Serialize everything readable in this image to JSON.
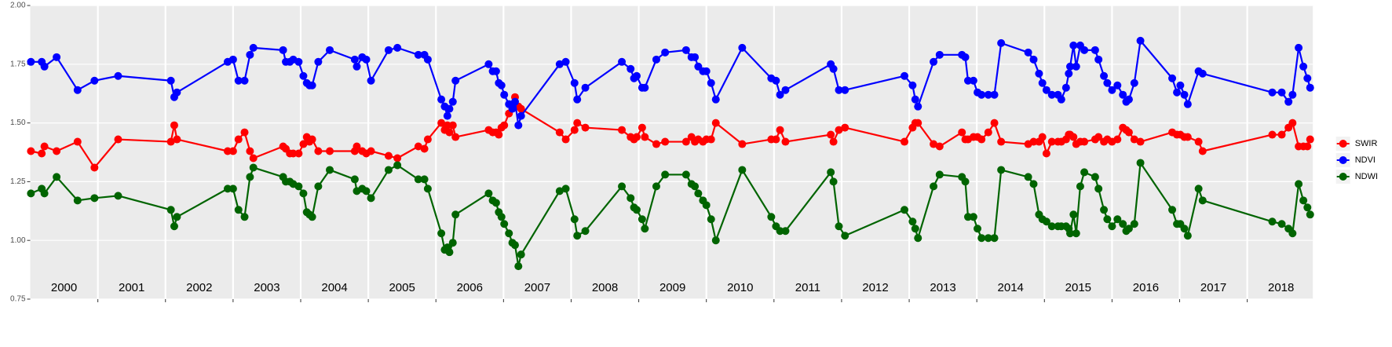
{
  "chart_data": {
    "type": "line",
    "x": [
      2000.01,
      2000.17,
      2000.21,
      2000.39,
      2000.7,
      2000.95,
      2001.3,
      2002.08,
      2002.13,
      2002.17,
      2002.92,
      2003.0,
      2003.08,
      2003.17,
      2003.25,
      2003.3,
      2003.74,
      2003.78,
      2003.84,
      2003.89,
      2003.97,
      2004.04,
      2004.09,
      2004.13,
      2004.17,
      2004.26,
      2004.43,
      2004.8,
      2004.83,
      2004.91,
      2004.97,
      2005.04,
      2005.3,
      2005.43,
      2005.74,
      2005.83,
      2005.88,
      2006.08,
      2006.13,
      2006.17,
      2006.2,
      2006.25,
      2006.29,
      2006.78,
      2006.84,
      2006.89,
      2006.93,
      2006.97,
      2007.01,
      2007.08,
      2007.13,
      2007.17,
      2007.22,
      2007.26,
      2007.83,
      2007.92,
      2008.05,
      2008.09,
      2008.21,
      2008.75,
      2008.88,
      2008.93,
      2008.97,
      2009.05,
      2009.09,
      2009.26,
      2009.39,
      2009.7,
      2009.78,
      2009.83,
      2009.88,
      2009.95,
      2010.0,
      2010.07,
      2010.14,
      2010.53,
      2010.96,
      2011.03,
      2011.09,
      2011.17,
      2011.84,
      2011.88,
      2011.96,
      2012.05,
      2012.93,
      2013.05,
      2013.09,
      2013.13,
      2013.36,
      2013.45,
      2013.78,
      2013.83,
      2013.87,
      2013.95,
      2014.01,
      2014.07,
      2014.17,
      2014.26,
      2014.36,
      2014.76,
      2014.84,
      2014.92,
      2014.97,
      2015.03,
      2015.11,
      2015.2,
      2015.25,
      2015.32,
      2015.36,
      2015.38,
      2015.43,
      2015.47,
      2015.53,
      2015.59,
      2015.75,
      2015.8,
      2015.88,
      2015.93,
      2016.0,
      2016.08,
      2016.16,
      2016.21,
      2016.25,
      2016.33,
      2016.42,
      2016.89,
      2016.96,
      2017.01,
      2017.07,
      2017.12,
      2017.28,
      2017.34,
      2018.37,
      2018.51,
      2018.61,
      2018.67,
      2018.76,
      2018.83,
      2018.89,
      2018.93
    ],
    "series": [
      {
        "name": "SWIR",
        "color": "#ff0000",
        "values": [
          1.38,
          1.37,
          1.4,
          1.38,
          1.42,
          1.31,
          1.43,
          1.42,
          1.49,
          1.43,
          1.38,
          1.38,
          1.43,
          1.46,
          1.38,
          1.35,
          1.4,
          1.39,
          1.37,
          1.37,
          1.37,
          1.41,
          1.44,
          1.42,
          1.43,
          1.38,
          1.38,
          1.38,
          1.4,
          1.38,
          1.37,
          1.38,
          1.36,
          1.35,
          1.4,
          1.39,
          1.43,
          1.5,
          1.47,
          1.49,
          1.46,
          1.49,
          1.44,
          1.47,
          1.46,
          1.46,
          1.45,
          1.48,
          1.49,
          1.54,
          1.57,
          1.61,
          1.57,
          1.56,
          1.46,
          1.43,
          1.47,
          1.5,
          1.48,
          1.47,
          1.44,
          1.43,
          1.44,
          1.48,
          1.44,
          1.41,
          1.42,
          1.42,
          1.44,
          1.42,
          1.43,
          1.42,
          1.43,
          1.43,
          1.5,
          1.41,
          1.43,
          1.43,
          1.47,
          1.42,
          1.45,
          1.42,
          1.47,
          1.48,
          1.42,
          1.48,
          1.5,
          1.5,
          1.41,
          1.4,
          1.46,
          1.43,
          1.43,
          1.44,
          1.44,
          1.43,
          1.46,
          1.5,
          1.42,
          1.41,
          1.42,
          1.42,
          1.44,
          1.37,
          1.42,
          1.42,
          1.42,
          1.43,
          1.45,
          1.45,
          1.44,
          1.41,
          1.42,
          1.42,
          1.43,
          1.44,
          1.42,
          1.43,
          1.42,
          1.43,
          1.48,
          1.47,
          1.46,
          1.43,
          1.42,
          1.46,
          1.45,
          1.45,
          1.44,
          1.44,
          1.42,
          1.38,
          1.45,
          1.45,
          1.48,
          1.5,
          1.4,
          1.4,
          1.4,
          1.43
        ]
      },
      {
        "name": "NDVI",
        "color": "#0000ff",
        "values": [
          1.76,
          1.76,
          1.74,
          1.78,
          1.64,
          1.68,
          1.7,
          1.68,
          1.61,
          1.63,
          1.76,
          1.77,
          1.68,
          1.68,
          1.79,
          1.82,
          1.81,
          1.76,
          1.76,
          1.77,
          1.76,
          1.7,
          1.67,
          1.66,
          1.66,
          1.76,
          1.81,
          1.77,
          1.74,
          1.78,
          1.77,
          1.68,
          1.81,
          1.82,
          1.79,
          1.79,
          1.77,
          1.6,
          1.57,
          1.53,
          1.56,
          1.59,
          1.68,
          1.75,
          1.72,
          1.72,
          1.67,
          1.66,
          1.62,
          1.58,
          1.56,
          1.59,
          1.49,
          1.53,
          1.75,
          1.76,
          1.67,
          1.6,
          1.65,
          1.76,
          1.73,
          1.69,
          1.7,
          1.65,
          1.65,
          1.77,
          1.8,
          1.81,
          1.78,
          1.78,
          1.74,
          1.72,
          1.72,
          1.67,
          1.6,
          1.82,
          1.69,
          1.68,
          1.62,
          1.64,
          1.75,
          1.73,
          1.64,
          1.64,
          1.7,
          1.66,
          1.6,
          1.57,
          1.76,
          1.79,
          1.79,
          1.78,
          1.68,
          1.68,
          1.63,
          1.62,
          1.62,
          1.62,
          1.84,
          1.8,
          1.77,
          1.71,
          1.67,
          1.64,
          1.62,
          1.62,
          1.6,
          1.65,
          1.71,
          1.74,
          1.83,
          1.74,
          1.83,
          1.81,
          1.81,
          1.77,
          1.7,
          1.67,
          1.64,
          1.66,
          1.62,
          1.59,
          1.6,
          1.67,
          1.85,
          1.69,
          1.63,
          1.66,
          1.62,
          1.58,
          1.72,
          1.71,
          1.63,
          1.63,
          1.59,
          1.62,
          1.82,
          1.74,
          1.69,
          1.65
        ]
      },
      {
        "name": "NDWI",
        "color": "#006400",
        "values": [
          1.2,
          1.22,
          1.2,
          1.27,
          1.17,
          1.18,
          1.19,
          1.13,
          1.06,
          1.1,
          1.22,
          1.22,
          1.13,
          1.1,
          1.27,
          1.31,
          1.27,
          1.25,
          1.25,
          1.24,
          1.23,
          1.2,
          1.12,
          1.11,
          1.1,
          1.23,
          1.3,
          1.26,
          1.21,
          1.22,
          1.21,
          1.18,
          1.3,
          1.32,
          1.26,
          1.26,
          1.22,
          1.03,
          0.96,
          0.97,
          0.95,
          0.99,
          1.11,
          1.2,
          1.17,
          1.16,
          1.12,
          1.1,
          1.07,
          1.03,
          0.99,
          0.98,
          0.89,
          0.94,
          1.21,
          1.22,
          1.09,
          1.02,
          1.04,
          1.23,
          1.18,
          1.14,
          1.13,
          1.09,
          1.05,
          1.23,
          1.28,
          1.28,
          1.24,
          1.23,
          1.2,
          1.17,
          1.15,
          1.09,
          1.0,
          1.3,
          1.1,
          1.06,
          1.04,
          1.04,
          1.29,
          1.25,
          1.06,
          1.02,
          1.13,
          1.08,
          1.05,
          1.01,
          1.23,
          1.28,
          1.27,
          1.25,
          1.1,
          1.1,
          1.05,
          1.01,
          1.01,
          1.01,
          1.3,
          1.27,
          1.24,
          1.11,
          1.09,
          1.08,
          1.06,
          1.06,
          1.06,
          1.06,
          1.05,
          1.03,
          1.11,
          1.03,
          1.23,
          1.29,
          1.27,
          1.22,
          1.13,
          1.09,
          1.06,
          1.09,
          1.07,
          1.04,
          1.05,
          1.07,
          1.33,
          1.13,
          1.07,
          1.07,
          1.05,
          1.02,
          1.22,
          1.17,
          1.08,
          1.07,
          1.05,
          1.03,
          1.24,
          1.17,
          1.14,
          1.11
        ]
      }
    ],
    "xlim": [
      2000,
      2018.97
    ],
    "xticks": [
      2001,
      2002,
      2003,
      2004,
      2005,
      2006,
      2007,
      2008,
      2009,
      2010,
      2011,
      2012,
      2013,
      2014,
      2015,
      2016,
      2017,
      2018
    ],
    "year_labels": [
      {
        "value": 2000.5,
        "label": "2000"
      },
      {
        "value": 2001.5,
        "label": "2001"
      },
      {
        "value": 2002.5,
        "label": "2002"
      },
      {
        "value": 2003.5,
        "label": "2003"
      },
      {
        "value": 2004.5,
        "label": "2004"
      },
      {
        "value": 2005.5,
        "label": "2005"
      },
      {
        "value": 2006.5,
        "label": "2006"
      },
      {
        "value": 2007.5,
        "label": "2007"
      },
      {
        "value": 2008.5,
        "label": "2008"
      },
      {
        "value": 2009.5,
        "label": "2009"
      },
      {
        "value": 2010.5,
        "label": "2010"
      },
      {
        "value": 2011.5,
        "label": "2011"
      },
      {
        "value": 2012.5,
        "label": "2012"
      },
      {
        "value": 2013.5,
        "label": "2013"
      },
      {
        "value": 2014.5,
        "label": "2014"
      },
      {
        "value": 2015.5,
        "label": "2015"
      },
      {
        "value": 2016.5,
        "label": "2016"
      },
      {
        "value": 2017.5,
        "label": "2017"
      },
      {
        "value": 2018.5,
        "label": "2018"
      }
    ],
    "ylim": [
      0.75,
      2.0
    ],
    "yticks": [
      {
        "value": 0.75,
        "label": "0.75"
      },
      {
        "value": 1.0,
        "label": "1.00"
      },
      {
        "value": 1.25,
        "label": "1.25"
      },
      {
        "value": 1.5,
        "label": "1.50"
      },
      {
        "value": 1.75,
        "label": "1.75"
      },
      {
        "value": 2.0,
        "label": "2.00"
      }
    ],
    "grid": true,
    "legend": "right"
  }
}
